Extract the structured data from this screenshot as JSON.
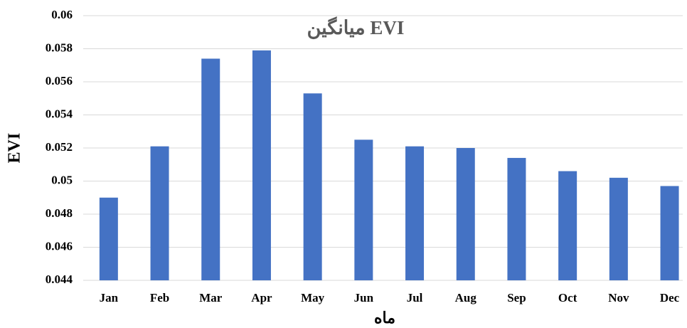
{
  "chart_data": {
    "type": "bar",
    "title": "میانگین EVI",
    "x_label": "ماه",
    "y_label": "EVI",
    "categories": [
      "Jan",
      "Feb",
      "Mar",
      "Apr",
      "May",
      "Jun",
      "Jul",
      "Aug",
      "Sep",
      "Oct",
      "Nov",
      "Dec"
    ],
    "values": [
      0.049,
      0.0521,
      0.0574,
      0.0579,
      0.0553,
      0.0525,
      0.0521,
      0.052,
      0.0514,
      0.0506,
      0.0502,
      0.0497
    ],
    "color": "#4472c4",
    "ylim": [
      0.044,
      0.06
    ],
    "yticks": [
      0.044,
      0.046,
      0.048,
      0.05,
      0.052,
      0.054,
      0.056,
      0.058,
      0.06
    ],
    "grid": true
  }
}
